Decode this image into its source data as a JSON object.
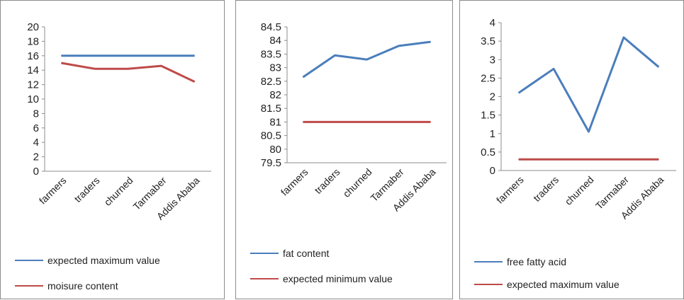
{
  "chart_data": [
    {
      "type": "line",
      "categories": [
        "farmers",
        "traders",
        "churned",
        "Tarmaber",
        "Addis Ababa"
      ],
      "ylim": [
        0,
        20
      ],
      "yticks": [
        "0",
        "2",
        "4",
        "6",
        "8",
        "10",
        "12",
        "14",
        "16",
        "18",
        "20"
      ],
      "series": [
        {
          "name": "expected maximum value",
          "color": "#4a7ebb",
          "values": [
            16,
            16,
            16,
            16,
            16
          ]
        },
        {
          "name": "moisure content",
          "color": "#be4b48",
          "values": [
            15.0,
            14.2,
            14.2,
            14.6,
            12.4
          ]
        }
      ],
      "legend_position": "bottom"
    },
    {
      "type": "line",
      "categories": [
        "farmers",
        "traders",
        "churned",
        "Tarmaber",
        "Addis Ababa"
      ],
      "ylim": [
        79.5,
        84.5
      ],
      "yticks": [
        "79.5",
        "80",
        "80.5",
        "81",
        "81.5",
        "82",
        "82.5",
        "83",
        "83.5",
        "84",
        "84.5"
      ],
      "series": [
        {
          "name": "fat content",
          "color": "#4a7ebb",
          "values": [
            82.65,
            83.45,
            83.3,
            83.8,
            83.95
          ]
        },
        {
          "name": "expected minimum value",
          "color": "#be4b48",
          "values": [
            81,
            81,
            81,
            81,
            81
          ]
        }
      ],
      "legend_position": "bottom"
    },
    {
      "type": "line",
      "categories": [
        "farmers",
        "traders",
        "churned",
        "Tarmaber",
        "Addis Ababa"
      ],
      "ylim": [
        0,
        4
      ],
      "yticks": [
        "0",
        "0.5",
        "1",
        "1.5",
        "2",
        "2.5",
        "3",
        "3.5",
        "4"
      ],
      "series": [
        {
          "name": "free fatty acid",
          "color": "#4a7ebb",
          "values": [
            2.1,
            2.75,
            1.05,
            3.6,
            2.8
          ]
        },
        {
          "name": "expected maximum  value",
          "color": "#be4b48",
          "values": [
            0.3,
            0.3,
            0.3,
            0.3,
            0.3
          ]
        }
      ],
      "legend_position": "bottom"
    }
  ]
}
